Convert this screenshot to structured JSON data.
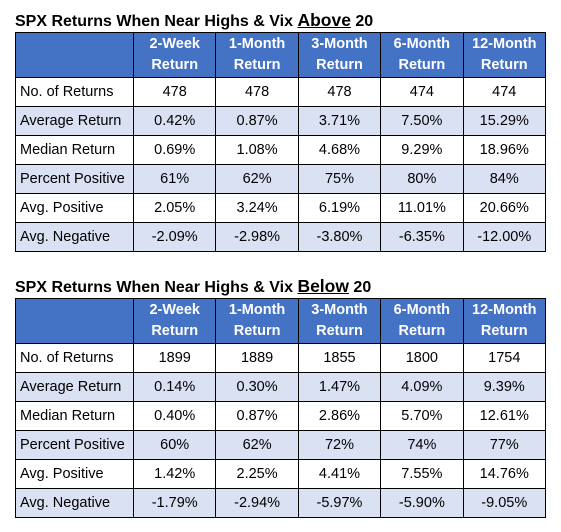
{
  "tables": [
    {
      "title_prefix": "SPX Returns When Near Highs & Vix ",
      "title_emphasis": "Above",
      "title_suffix": " 20",
      "columns": [
        {
          "line1": "2-Week",
          "line2": "Return"
        },
        {
          "line1": "1-Month",
          "line2": "Return"
        },
        {
          "line1": "3-Month",
          "line2": "Return"
        },
        {
          "line1": "6-Month",
          "line2": "Return"
        },
        {
          "line1": "12-Month",
          "line2": "Return"
        }
      ],
      "rows": [
        {
          "label": "No. of Returns",
          "values": [
            "478",
            "478",
            "478",
            "474",
            "474"
          ]
        },
        {
          "label": "Average Return",
          "values": [
            "0.42%",
            "0.87%",
            "3.71%",
            "7.50%",
            "15.29%"
          ]
        },
        {
          "label": "Median Return",
          "values": [
            "0.69%",
            "1.08%",
            "4.68%",
            "9.29%",
            "18.96%"
          ]
        },
        {
          "label": "Percent Positive",
          "values": [
            "61%",
            "62%",
            "75%",
            "80%",
            "84%"
          ]
        },
        {
          "label": "Avg. Positive",
          "values": [
            "2.05%",
            "3.24%",
            "6.19%",
            "11.01%",
            "20.66%"
          ]
        },
        {
          "label": "Avg. Negative",
          "values": [
            "-2.09%",
            "-2.98%",
            "-3.80%",
            "-6.35%",
            "-12.00%"
          ]
        }
      ]
    },
    {
      "title_prefix": "SPX Returns When Near Highs & Vix ",
      "title_emphasis": "Below",
      "title_suffix": " 20",
      "columns": [
        {
          "line1": "2-Week",
          "line2": "Return"
        },
        {
          "line1": "1-Month",
          "line2": "Return"
        },
        {
          "line1": "3-Month",
          "line2": "Return"
        },
        {
          "line1": "6-Month",
          "line2": "Return"
        },
        {
          "line1": "12-Month",
          "line2": "Return"
        }
      ],
      "rows": [
        {
          "label": "No. of Returns",
          "values": [
            "1899",
            "1889",
            "1855",
            "1800",
            "1754"
          ]
        },
        {
          "label": "Average Return",
          "values": [
            "0.14%",
            "0.30%",
            "1.47%",
            "4.09%",
            "9.39%"
          ]
        },
        {
          "label": "Median Return",
          "values": [
            "0.40%",
            "0.87%",
            "2.86%",
            "5.70%",
            "12.61%"
          ]
        },
        {
          "label": "Percent Positive",
          "values": [
            "60%",
            "62%",
            "72%",
            "74%",
            "77%"
          ]
        },
        {
          "label": "Avg. Positive",
          "values": [
            "1.42%",
            "2.25%",
            "4.41%",
            "7.55%",
            "14.76%"
          ]
        },
        {
          "label": "Avg. Negative",
          "values": [
            "-1.79%",
            "-2.94%",
            "-5.97%",
            "-5.90%",
            "-9.05%"
          ]
        }
      ]
    }
  ],
  "colors": {
    "header_bg": "#4472c4",
    "header_text": "#ffffff",
    "band_bg": "#d9e1f2",
    "border": "#000000"
  }
}
